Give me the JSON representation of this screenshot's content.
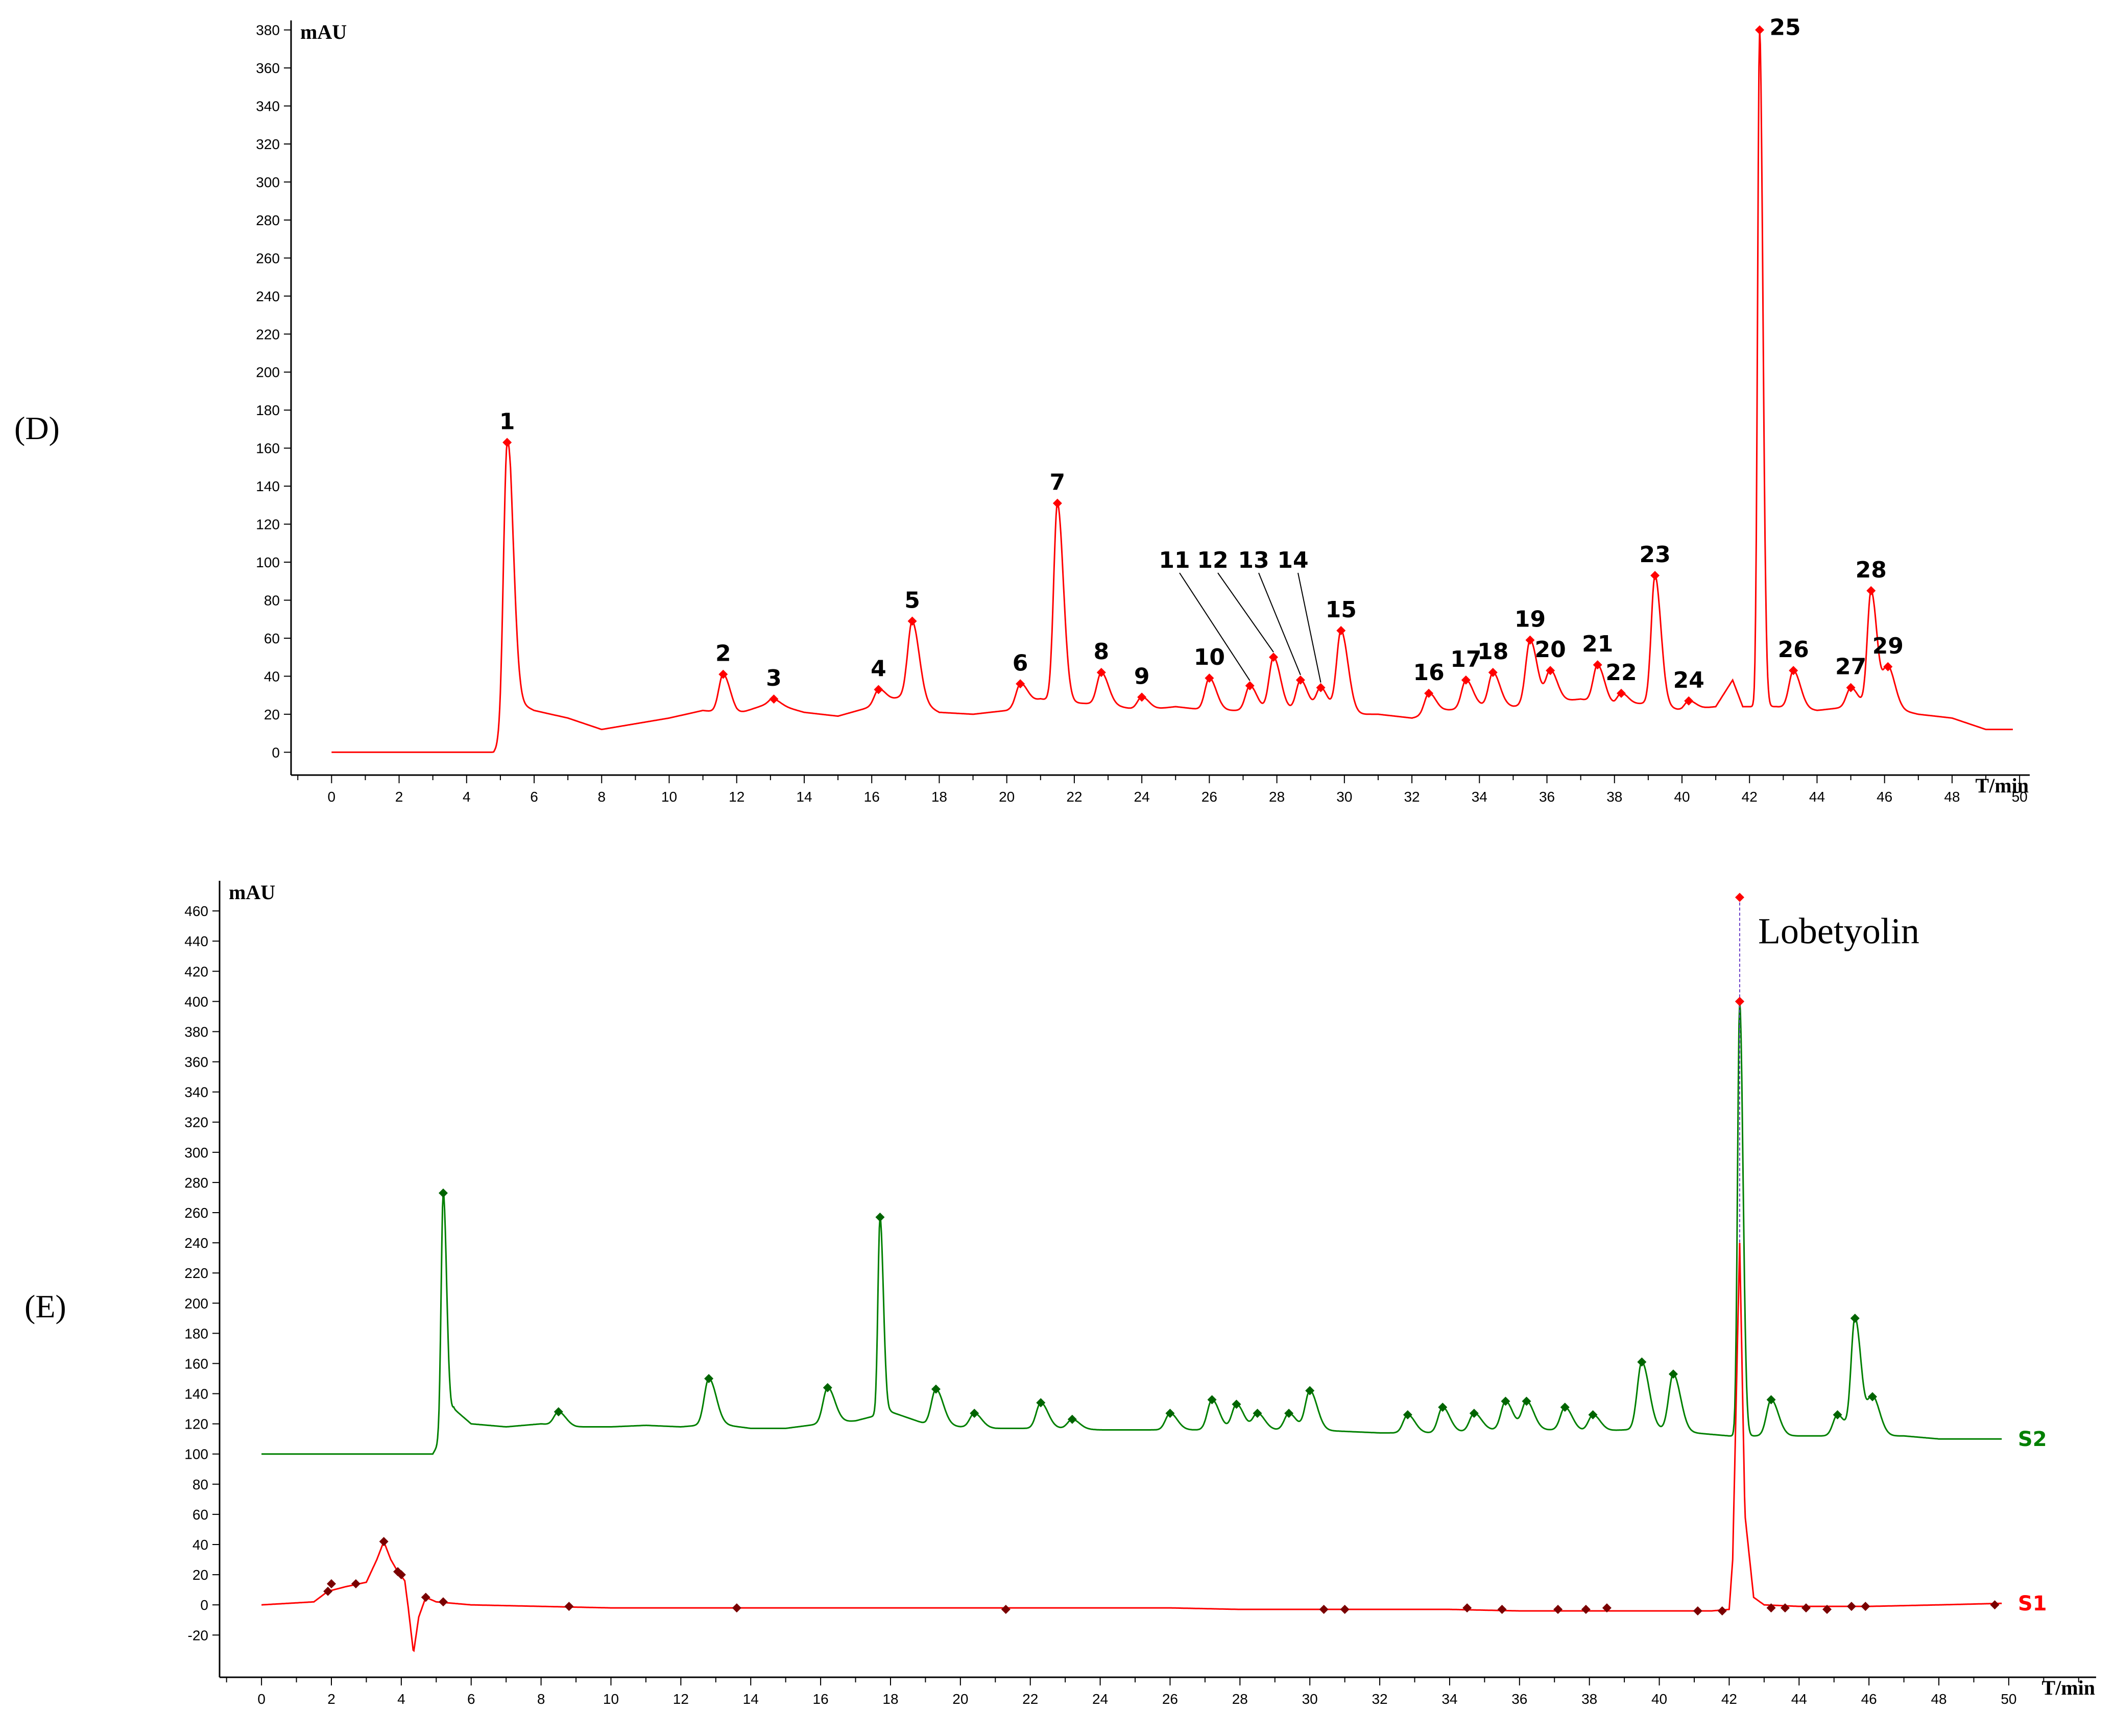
{
  "chart_data": [
    {
      "type": "line",
      "panel_label": "(D)",
      "ylabel": "mAU",
      "xlabel": "T/min",
      "xlim": [
        -1.2,
        50.3
      ],
      "ylim": [
        -12,
        385
      ],
      "x_ticks": [
        0,
        2,
        4,
        6,
        8,
        10,
        12,
        14,
        16,
        18,
        20,
        22,
        24,
        26,
        28,
        30,
        32,
        34,
        36,
        38,
        40,
        42,
        44,
        46,
        48,
        50
      ],
      "y_ticks": [
        0,
        20,
        40,
        60,
        80,
        100,
        120,
        140,
        160,
        180,
        200,
        220,
        240,
        260,
        280,
        300,
        320,
        340,
        360,
        380
      ],
      "baseline": [
        [
          0,
          0
        ],
        [
          4.8,
          0
        ],
        [
          5.0,
          4
        ],
        [
          5.3,
          28
        ],
        [
          6,
          22
        ],
        [
          7,
          18
        ],
        [
          8,
          12
        ],
        [
          9,
          15
        ],
        [
          10,
          18
        ],
        [
          11,
          22
        ],
        [
          12,
          20
        ],
        [
          13,
          26
        ],
        [
          14,
          21
        ],
        [
          15,
          19
        ],
        [
          16,
          24
        ],
        [
          17,
          30
        ],
        [
          18,
          21
        ],
        [
          19,
          20
        ],
        [
          20,
          22
        ],
        [
          21,
          28
        ],
        [
          22,
          26
        ],
        [
          23,
          25
        ],
        [
          24,
          22
        ],
        [
          25,
          24
        ],
        [
          26,
          22
        ],
        [
          27,
          22
        ],
        [
          28,
          22
        ],
        [
          29,
          22
        ],
        [
          30,
          20
        ],
        [
          31,
          20
        ],
        [
          32,
          18
        ],
        [
          33,
          22
        ],
        [
          34,
          24
        ],
        [
          35,
          24
        ],
        [
          36,
          26
        ],
        [
          37,
          28
        ],
        [
          38,
          24
        ],
        [
          39,
          26
        ],
        [
          40,
          22
        ],
        [
          41,
          24
        ],
        [
          41.5,
          38
        ],
        [
          41.8,
          24
        ],
        [
          42.8,
          24
        ],
        [
          44,
          22
        ],
        [
          45,
          24
        ],
        [
          46,
          24
        ],
        [
          47,
          20
        ],
        [
          48,
          18
        ],
        [
          49,
          12
        ],
        [
          49.8,
          12
        ]
      ],
      "series": [
        {
          "name": "",
          "color": "#ff0000",
          "peaks": [
            {
              "label": "1",
              "x": 5.2,
              "y": 163
            },
            {
              "label": "2",
              "x": 11.6,
              "y": 41
            },
            {
              "label": "3",
              "x": 13.1,
              "y": 28
            },
            {
              "label": "4",
              "x": 16.2,
              "y": 33
            },
            {
              "label": "5",
              "x": 17.2,
              "y": 69
            },
            {
              "label": "6",
              "x": 20.4,
              "y": 36
            },
            {
              "label": "7",
              "x": 21.5,
              "y": 131
            },
            {
              "label": "8",
              "x": 22.8,
              "y": 42
            },
            {
              "label": "9",
              "x": 24.0,
              "y": 29
            },
            {
              "label": "10",
              "x": 26.0,
              "y": 39
            },
            {
              "label": "11",
              "x": 27.2,
              "y": 35
            },
            {
              "label": "12",
              "x": 27.9,
              "y": 50
            },
            {
              "label": "13",
              "x": 28.7,
              "y": 38
            },
            {
              "label": "14",
              "x": 29.3,
              "y": 34
            },
            {
              "label": "15",
              "x": 29.9,
              "y": 64
            },
            {
              "label": "16",
              "x": 32.5,
              "y": 31
            },
            {
              "label": "17",
              "x": 33.6,
              "y": 38
            },
            {
              "label": "18",
              "x": 34.4,
              "y": 42
            },
            {
              "label": "19",
              "x": 35.5,
              "y": 59
            },
            {
              "label": "20",
              "x": 36.1,
              "y": 43
            },
            {
              "label": "21",
              "x": 37.5,
              "y": 46
            },
            {
              "label": "22",
              "x": 38.2,
              "y": 31
            },
            {
              "label": "23",
              "x": 39.2,
              "y": 93
            },
            {
              "label": "24",
              "x": 40.2,
              "y": 27
            },
            {
              "label": "25",
              "x": 42.3,
              "y": 380
            },
            {
              "label": "26",
              "x": 43.3,
              "y": 43
            },
            {
              "label": "27",
              "x": 45.0,
              "y": 34
            },
            {
              "label": "28",
              "x": 45.6,
              "y": 85
            },
            {
              "label": "29",
              "x": 46.1,
              "y": 45
            }
          ]
        }
      ]
    },
    {
      "type": "line",
      "panel_label": "(E)",
      "ylabel": "mAU",
      "xlabel": "T/min",
      "xlim": [
        -1.2,
        52.5
      ],
      "ylim": [
        -48,
        480
      ],
      "x_ticks": [
        0,
        2,
        4,
        6,
        8,
        10,
        12,
        14,
        16,
        18,
        20,
        22,
        24,
        26,
        28,
        30,
        32,
        34,
        36,
        38,
        40,
        42,
        44,
        46,
        48,
        50
      ],
      "y_ticks": [
        -20,
        0,
        20,
        40,
        60,
        80,
        100,
        120,
        140,
        160,
        180,
        200,
        220,
        240,
        260,
        280,
        300,
        320,
        340,
        360,
        380,
        400,
        420,
        440,
        460
      ],
      "annotation": {
        "text": "Lobetyolin",
        "x": 42.3,
        "y": 469
      },
      "series": [
        {
          "name": "S2",
          "color": "#008000",
          "baseline": [
            [
              0,
              100
            ],
            [
              4.9,
              100
            ],
            [
              5.0,
              104
            ],
            [
              5.5,
              130
            ],
            [
              6,
              120
            ],
            [
              7,
              118
            ],
            [
              8,
              120
            ],
            [
              9,
              118
            ],
            [
              10,
              118
            ],
            [
              11,
              119
            ],
            [
              12,
              118
            ],
            [
              13,
              120
            ],
            [
              14,
              117
            ],
            [
              15,
              117
            ],
            [
              16,
              120
            ],
            [
              17,
              122
            ],
            [
              18,
              128
            ],
            [
              19,
              120
            ],
            [
              20,
              118
            ],
            [
              21,
              117
            ],
            [
              22,
              117
            ],
            [
              23,
              117
            ],
            [
              24,
              116
            ],
            [
              25,
              116
            ],
            [
              26,
              116
            ],
            [
              27,
              116
            ],
            [
              28,
              116
            ],
            [
              29,
              116
            ],
            [
              30,
              116
            ],
            [
              31,
              115
            ],
            [
              32,
              114
            ],
            [
              33,
              114
            ],
            [
              34,
              114
            ],
            [
              35,
              116
            ],
            [
              36,
              116
            ],
            [
              37,
              116
            ],
            [
              38,
              115
            ],
            [
              39,
              116
            ],
            [
              40,
              116
            ],
            [
              41,
              114
            ],
            [
              42,
              112
            ],
            [
              43,
              112
            ],
            [
              44,
              112
            ],
            [
              45,
              112
            ],
            [
              46,
              112
            ],
            [
              47,
              112
            ],
            [
              48,
              110
            ],
            [
              49,
              110
            ],
            [
              50,
              110
            ]
          ],
          "peaks": [
            {
              "x": 5.2,
              "y": 273
            },
            {
              "x": 8.5,
              "y": 128
            },
            {
              "x": 12.8,
              "y": 150
            },
            {
              "x": 16.2,
              "y": 144
            },
            {
              "x": 17.7,
              "y": 257
            },
            {
              "x": 19.3,
              "y": 143
            },
            {
              "x": 20.4,
              "y": 127
            },
            {
              "x": 22.3,
              "y": 134
            },
            {
              "x": 23.2,
              "y": 123
            },
            {
              "x": 26.0,
              "y": 127
            },
            {
              "x": 27.2,
              "y": 136
            },
            {
              "x": 27.9,
              "y": 133
            },
            {
              "x": 28.5,
              "y": 127
            },
            {
              "x": 29.4,
              "y": 127
            },
            {
              "x": 30.0,
              "y": 142
            },
            {
              "x": 32.8,
              "y": 126
            },
            {
              "x": 33.8,
              "y": 131
            },
            {
              "x": 34.7,
              "y": 127
            },
            {
              "x": 35.6,
              "y": 135
            },
            {
              "x": 36.2,
              "y": 135
            },
            {
              "x": 37.3,
              "y": 131
            },
            {
              "x": 38.1,
              "y": 126
            },
            {
              "x": 39.5,
              "y": 161
            },
            {
              "x": 40.4,
              "y": 153
            },
            {
              "x": 42.3,
              "y": 400
            },
            {
              "x": 43.2,
              "y": 136
            },
            {
              "x": 45.1,
              "y": 126
            },
            {
              "x": 45.6,
              "y": 190
            },
            {
              "x": 46.1,
              "y": 138
            }
          ]
        },
        {
          "name": "S1",
          "color": "#ff0000",
          "baseline": [
            [
              0,
              0
            ],
            [
              1.5,
              2
            ],
            [
              1.9,
              9
            ],
            [
              2.4,
              12
            ],
            [
              3,
              15
            ],
            [
              3.3,
              30
            ],
            [
              3.5,
              42
            ],
            [
              3.7,
              30
            ],
            [
              3.9,
              22
            ],
            [
              4.1,
              16
            ],
            [
              4.2,
              -2
            ],
            [
              4.35,
              -32
            ],
            [
              4.5,
              -8
            ],
            [
              4.7,
              5
            ],
            [
              5,
              2
            ],
            [
              6,
              0
            ],
            [
              8,
              -1
            ],
            [
              10,
              -2
            ],
            [
              12,
              -2
            ],
            [
              14,
              -2
            ],
            [
              16,
              -2
            ],
            [
              18,
              -2
            ],
            [
              20,
              -2
            ],
            [
              22,
              -2
            ],
            [
              24,
              -2
            ],
            [
              26,
              -2
            ],
            [
              28,
              -3
            ],
            [
              30,
              -3
            ],
            [
              32,
              -3
            ],
            [
              34,
              -3
            ],
            [
              36,
              -4
            ],
            [
              38,
              -4
            ],
            [
              40,
              -4
            ],
            [
              41.5,
              -4
            ],
            [
              42.0,
              -3
            ],
            [
              42.1,
              30
            ],
            [
              42.3,
              240
            ],
            [
              42.45,
              60
            ],
            [
              42.7,
              5
            ],
            [
              43,
              0
            ],
            [
              44,
              -1
            ],
            [
              46,
              -1
            ],
            [
              48,
              0
            ],
            [
              49.8,
              1
            ]
          ],
          "markers": [
            [
              1.9,
              9
            ],
            [
              2.0,
              14
            ],
            [
              2.7,
              14
            ],
            [
              3.5,
              42
            ],
            [
              3.9,
              22
            ],
            [
              4.0,
              20
            ],
            [
              4.7,
              5
            ],
            [
              5.2,
              2
            ],
            [
              8.8,
              -1
            ],
            [
              13.6,
              -2
            ],
            [
              21.3,
              -3
            ],
            [
              30.4,
              -3
            ],
            [
              31.0,
              -3
            ],
            [
              34.5,
              -2
            ],
            [
              35.5,
              -3
            ],
            [
              37.1,
              -3
            ],
            [
              37.9,
              -3
            ],
            [
              38.5,
              -2
            ],
            [
              41.1,
              -4
            ],
            [
              41.8,
              -4
            ],
            [
              43.2,
              -2
            ],
            [
              43.6,
              -2
            ],
            [
              44.2,
              -2
            ],
            [
              44.8,
              -3
            ],
            [
              45.5,
              -1
            ],
            [
              45.9,
              -1
            ],
            [
              49.6,
              0
            ]
          ],
          "peaks": [
            {
              "x": 3.5,
              "y": 42
            },
            {
              "x": 42.3,
              "y": 240
            }
          ]
        }
      ]
    }
  ]
}
